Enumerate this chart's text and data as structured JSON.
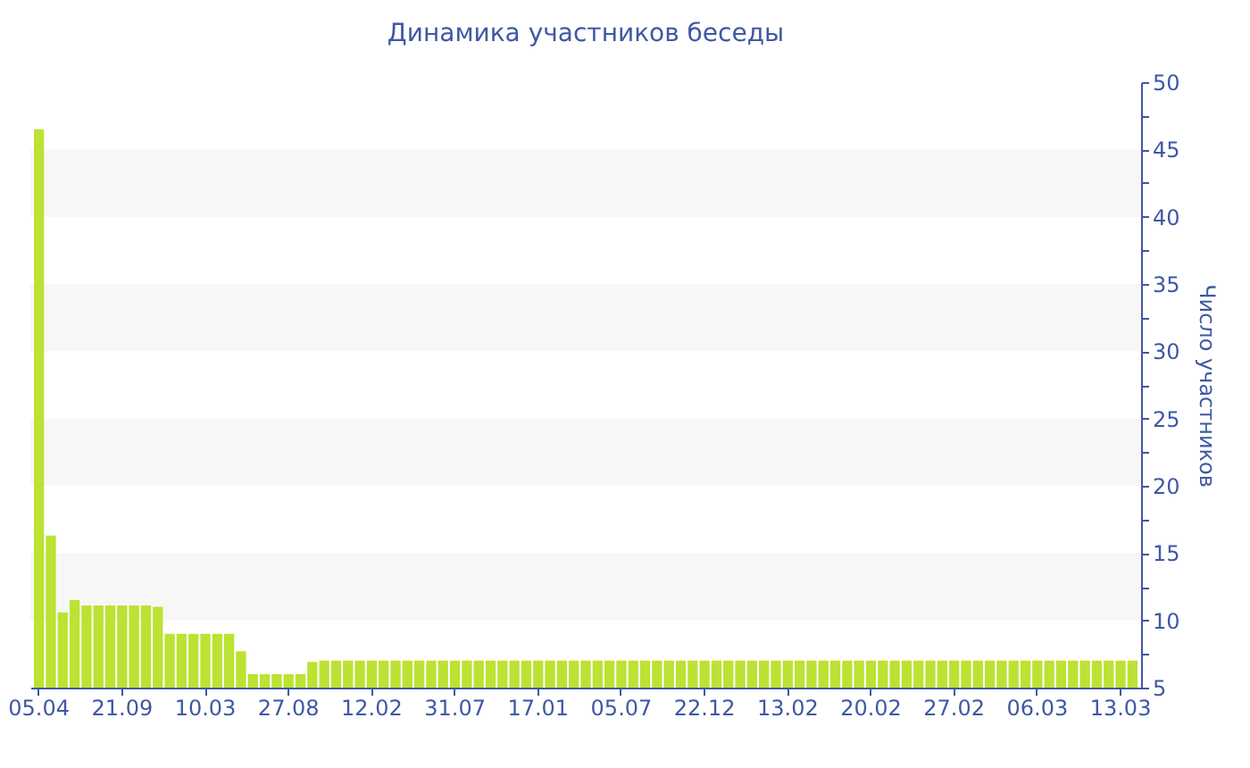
{
  "chart_data": {
    "type": "bar",
    "title": "Динамика участников беседы",
    "ylabel": "Число участников",
    "categories": [
      "05.04",
      null,
      null,
      null,
      null,
      null,
      null,
      "21.09",
      null,
      null,
      null,
      null,
      null,
      null,
      "10.03",
      null,
      null,
      null,
      null,
      null,
      null,
      "27.08",
      null,
      null,
      null,
      null,
      null,
      null,
      "12.02",
      null,
      null,
      null,
      null,
      null,
      null,
      "31.07",
      null,
      null,
      null,
      null,
      null,
      null,
      "17.01",
      null,
      null,
      null,
      null,
      null,
      null,
      "05.07",
      null,
      null,
      null,
      null,
      null,
      null,
      "22.12",
      null,
      null,
      null,
      null,
      null,
      null,
      "13.02",
      null,
      null,
      null,
      null,
      null,
      null,
      "20.02",
      null,
      null,
      null,
      null,
      null,
      null,
      "27.02",
      null,
      null,
      null,
      null,
      null,
      null,
      "06.03",
      null,
      null,
      null,
      null,
      null,
      null,
      "13.03",
      null
    ],
    "series": [
      {
        "color": "#bce232",
        "values": [
          46.5,
          16.3,
          10.6,
          11.5,
          11.1,
          11.1,
          11.1,
          11.1,
          11.1,
          11.1,
          11.0,
          9.0,
          9.0,
          9.0,
          9.0,
          9.0,
          9.0,
          7.7,
          6.0,
          6.0,
          6.0,
          6.0,
          6.0,
          6.9,
          7,
          7,
          7,
          7,
          7,
          7,
          7,
          7,
          7,
          7,
          7,
          7,
          7,
          7,
          7,
          7,
          7,
          7,
          7,
          7,
          7,
          7,
          7,
          7,
          7,
          7,
          7,
          7,
          7,
          7,
          7,
          7,
          7,
          7,
          7,
          7,
          7,
          7,
          7,
          7,
          7,
          7,
          7,
          7,
          7,
          7,
          7,
          7,
          7,
          7,
          7,
          7,
          7,
          7,
          7,
          7,
          7,
          7,
          7,
          7,
          7,
          7,
          7,
          7,
          7,
          7,
          7,
          7,
          7
        ]
      }
    ],
    "ylim": [
      5,
      50
    ],
    "yticks": [
      5,
      {
        "value": 7.5,
        "label": null
      },
      10,
      {
        "value": 12.5,
        "label": null
      },
      15,
      {
        "value": 17.5,
        "label": null
      },
      20,
      {
        "value": 22.5,
        "label": null
      },
      25,
      {
        "value": 27.5,
        "label": null
      },
      30,
      {
        "value": 32.5,
        "label": null
      },
      35,
      {
        "value": 37.5,
        "label": null
      },
      40,
      {
        "value": 42.5,
        "label": null
      },
      45,
      {
        "value": 47.5,
        "label": null
      },
      50
    ],
    "bands": [
      {
        "axis": "y",
        "from": 10,
        "to": 15,
        "color": "#f7f7f7"
      },
      {
        "axis": "y",
        "from": 20,
        "to": 25,
        "color": "#f7f7f7"
      },
      {
        "axis": "y",
        "from": 30,
        "to": 35,
        "color": "#f7f7f7"
      },
      {
        "axis": "y",
        "from": 40,
        "to": 45,
        "color": "#f7f7f7"
      }
    ]
  }
}
